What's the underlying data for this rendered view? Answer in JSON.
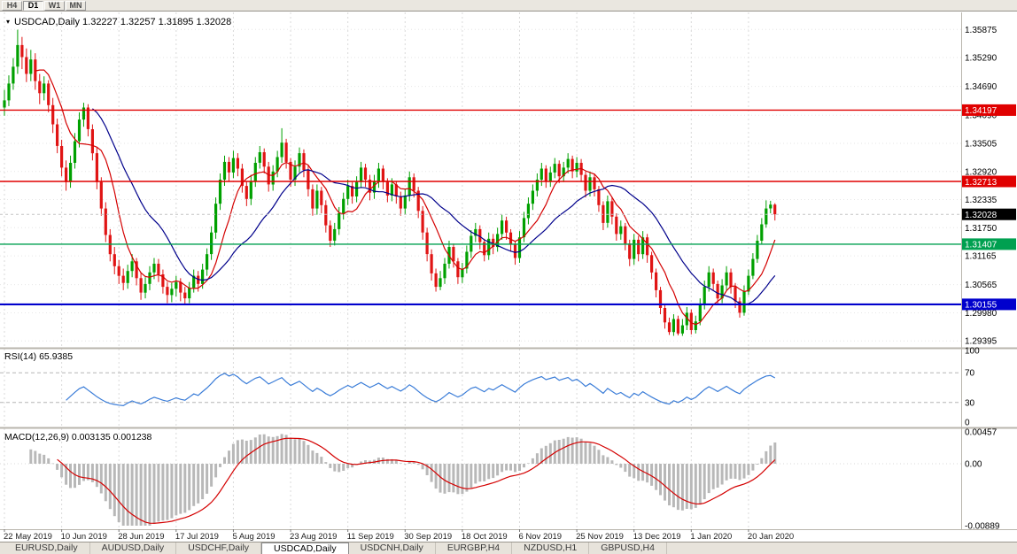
{
  "toolbar": {
    "buttons": [
      {
        "label": "H4",
        "active": false
      },
      {
        "label": "D1",
        "active": true
      },
      {
        "label": "W1",
        "active": false
      },
      {
        "label": "MN",
        "active": false
      }
    ]
  },
  "header": {
    "text": "USDCAD,Daily  1.32227 1.32257 1.31895 1.32028"
  },
  "rsi": {
    "label": "RSI(14) 65.9385",
    "period": 14,
    "value": "65.9385",
    "levels": [
      70,
      30
    ],
    "axis": [
      {
        "value": 100,
        "label": "100"
      },
      {
        "value": 70,
        "label": "70"
      },
      {
        "value": 30,
        "label": "30"
      },
      {
        "value": 0,
        "label": "0"
      }
    ],
    "color": "#3b7dd8",
    "range": [
      0,
      100
    ]
  },
  "macd": {
    "label": "MACD(12,26,9) 0.003135 0.001238",
    "fast": 12,
    "slow": 26,
    "signal": 9,
    "value": "0.003135",
    "signal_value": "0.001238",
    "axis": [
      {
        "value": 0.00457,
        "label": "0.00457"
      },
      {
        "value": 0,
        "label": "0.00"
      },
      {
        "value": -0.00889,
        "label": "-0.00889"
      }
    ],
    "range": [
      -0.00889,
      0.00457
    ],
    "hist_color": "#b8b8b8",
    "signal_color": "#d40000"
  },
  "tabs": [
    {
      "label": "EURUSD,Daily",
      "active": false
    },
    {
      "label": "AUDUSD,Daily",
      "active": false
    },
    {
      "label": "USDCHF,Daily",
      "active": false
    },
    {
      "label": "USDCAD,Daily",
      "active": true
    },
    {
      "label": "USDCNH,Daily",
      "active": false
    },
    {
      "label": "EURGBP,H4",
      "active": false
    },
    {
      "label": "NZDUSD,H1",
      "active": false
    },
    {
      "label": "GBPUSD,H4",
      "active": false
    }
  ],
  "chart_data": {
    "type": "candlestick",
    "symbol": "USDCAD",
    "timeframe": "Daily",
    "current_ohlc": {
      "open": "1.32227",
      "high": "1.32257",
      "low": "1.31895",
      "close": "1.32028"
    },
    "x_tick_labels": [
      "22 May 2019",
      "10 Jun 2019",
      "28 Jun 2019",
      "17 Jul 2019",
      "5 Aug 2019",
      "23 Aug 2019",
      "11 Sep 2019",
      "30 Sep 2019",
      "18 Oct 2019",
      "6 Nov 2019",
      "25 Nov 2019",
      "13 Dec 2019",
      "1 Jan 2020",
      "20 Jan 2020"
    ],
    "bars_per_x_tick": 13,
    "price_axis_ticks": [
      "1.35875",
      "1.35290",
      "1.34690",
      "1.34090",
      "1.33505",
      "1.32920",
      "1.32335",
      "1.31750",
      "1.31165",
      "1.30565",
      "1.29980",
      "1.29395"
    ],
    "price_range": [
      1.2927,
      1.3623
    ],
    "candle_colors": {
      "up": "#00a000",
      "down": "#e01414"
    },
    "moving_averages": [
      {
        "period": 8,
        "color": "#d40000"
      },
      {
        "period": 21,
        "color": "#00008b"
      }
    ],
    "horizontal_levels": [
      {
        "name": "resistance-line-upper",
        "price": 1.34197,
        "label": "1.34197",
        "color": "#e00000",
        "width": 1.4
      },
      {
        "name": "resistance-line-lower",
        "price": 1.32713,
        "label": "1.32713",
        "color": "#e00000",
        "width": 1.4
      },
      {
        "name": "support-line-green",
        "price": 1.31407,
        "label": "1.31407",
        "color": "#00a050",
        "width": 1.4
      },
      {
        "name": "support-line-blue",
        "price": 1.30155,
        "label": "1.30155",
        "color": "#0000cd",
        "width": 2.2
      }
    ],
    "current_price_badge": {
      "label": "1.32028",
      "price": 1.32028,
      "bg": "#000000"
    },
    "ohlc": [
      [
        1.3425,
        1.3462,
        1.3408,
        1.344
      ],
      [
        1.344,
        1.3492,
        1.3428,
        1.3475
      ],
      [
        1.3475,
        1.3528,
        1.3462,
        1.351
      ],
      [
        1.351,
        1.3587,
        1.3495,
        1.3555
      ],
      [
        1.3555,
        1.3572,
        1.3505,
        1.353
      ],
      [
        1.353,
        1.3548,
        1.3478,
        1.3495
      ],
      [
        1.3495,
        1.3545,
        1.348,
        1.3525
      ],
      [
        1.3525,
        1.3538,
        1.3462,
        1.348
      ],
      [
        1.348,
        1.3495,
        1.3432,
        1.3455
      ],
      [
        1.3455,
        1.349,
        1.344,
        1.3475
      ],
      [
        1.3475,
        1.3482,
        1.3415,
        1.343
      ],
      [
        1.343,
        1.3445,
        1.3372,
        1.339
      ],
      [
        1.339,
        1.3402,
        1.333,
        1.3345
      ],
      [
        1.3345,
        1.3358,
        1.3282,
        1.33
      ],
      [
        1.33,
        1.3315,
        1.3252,
        1.327
      ],
      [
        1.327,
        1.3325,
        1.3258,
        1.331
      ],
      [
        1.331,
        1.3372,
        1.3298,
        1.3355
      ],
      [
        1.3355,
        1.3415,
        1.3342,
        1.34
      ],
      [
        1.34,
        1.3435,
        1.3385,
        1.3425
      ],
      [
        1.3425,
        1.3432,
        1.3365,
        1.338
      ],
      [
        1.338,
        1.339,
        1.3315,
        1.333
      ],
      [
        1.333,
        1.3342,
        1.3255,
        1.327
      ],
      [
        1.327,
        1.328,
        1.32,
        1.3215
      ],
      [
        1.3215,
        1.3228,
        1.3145,
        1.316
      ],
      [
        1.316,
        1.3172,
        1.3105,
        1.312
      ],
      [
        1.312,
        1.3135,
        1.3078,
        1.3095
      ],
      [
        1.3095,
        1.3108,
        1.3058,
        1.3075
      ],
      [
        1.3075,
        1.309,
        1.3045,
        1.306
      ],
      [
        1.306,
        1.3098,
        1.3048,
        1.3085
      ],
      [
        1.3085,
        1.312,
        1.3072,
        1.3105
      ],
      [
        1.3105,
        1.3112,
        1.3055,
        1.307
      ],
      [
        1.307,
        1.3082,
        1.3025,
        1.304
      ],
      [
        1.304,
        1.3072,
        1.3028,
        1.3058
      ],
      [
        1.3058,
        1.3095,
        1.3045,
        1.3082
      ],
      [
        1.3082,
        1.3112,
        1.3068,
        1.31
      ],
      [
        1.31,
        1.311,
        1.3062,
        1.3078
      ],
      [
        1.3078,
        1.3088,
        1.3038,
        1.3052
      ],
      [
        1.3052,
        1.3062,
        1.3018,
        1.3035
      ],
      [
        1.3035,
        1.306,
        1.302,
        1.3048
      ],
      [
        1.3048,
        1.3075,
        1.3032,
        1.3062
      ],
      [
        1.3062,
        1.307,
        1.3022,
        1.304
      ],
      [
        1.304,
        1.3052,
        1.3016,
        1.3028
      ],
      [
        1.3028,
        1.3062,
        1.3018,
        1.305
      ],
      [
        1.305,
        1.3088,
        1.304,
        1.3075
      ],
      [
        1.3075,
        1.3085,
        1.3042,
        1.3058
      ],
      [
        1.3058,
        1.31,
        1.3048,
        1.3088
      ],
      [
        1.3088,
        1.3132,
        1.3075,
        1.312
      ],
      [
        1.312,
        1.3178,
        1.3108,
        1.3165
      ],
      [
        1.3165,
        1.3238,
        1.3152,
        1.3225
      ],
      [
        1.3225,
        1.3288,
        1.3212,
        1.3275
      ],
      [
        1.3275,
        1.3325,
        1.3262,
        1.3312
      ],
      [
        1.3312,
        1.3322,
        1.3272,
        1.329
      ],
      [
        1.329,
        1.3335,
        1.3278,
        1.332
      ],
      [
        1.332,
        1.333,
        1.3282,
        1.3298
      ],
      [
        1.3298,
        1.3308,
        1.3248,
        1.3262
      ],
      [
        1.3262,
        1.3272,
        1.322,
        1.3235
      ],
      [
        1.3235,
        1.3285,
        1.3222,
        1.3272
      ],
      [
        1.3272,
        1.3322,
        1.326,
        1.331
      ],
      [
        1.331,
        1.3345,
        1.3298,
        1.3332
      ],
      [
        1.3332,
        1.334,
        1.3288,
        1.3302
      ],
      [
        1.3302,
        1.3312,
        1.325,
        1.3265
      ],
      [
        1.3265,
        1.3305,
        1.3252,
        1.3292
      ],
      [
        1.3292,
        1.3335,
        1.328,
        1.3322
      ],
      [
        1.3322,
        1.3382,
        1.331,
        1.3352
      ],
      [
        1.3352,
        1.336,
        1.3298,
        1.3312
      ],
      [
        1.3312,
        1.332,
        1.326,
        1.3275
      ],
      [
        1.3275,
        1.3315,
        1.3262,
        1.3302
      ],
      [
        1.3302,
        1.3342,
        1.329,
        1.333
      ],
      [
        1.333,
        1.3338,
        1.328,
        1.3295
      ],
      [
        1.3295,
        1.3305,
        1.324,
        1.3255
      ],
      [
        1.3255,
        1.3265,
        1.32,
        1.3215
      ],
      [
        1.3215,
        1.3265,
        1.3202,
        1.3252
      ],
      [
        1.3252,
        1.326,
        1.3205,
        1.3222
      ],
      [
        1.3222,
        1.3232,
        1.3165,
        1.318
      ],
      [
        1.318,
        1.319,
        1.3135,
        1.3148
      ],
      [
        1.3148,
        1.3185,
        1.3138,
        1.3172
      ],
      [
        1.3172,
        1.3218,
        1.316,
        1.3205
      ],
      [
        1.3205,
        1.3248,
        1.3192,
        1.3235
      ],
      [
        1.3235,
        1.3275,
        1.3222,
        1.3262
      ],
      [
        1.3262,
        1.327,
        1.3225,
        1.324
      ],
      [
        1.324,
        1.3282,
        1.3228,
        1.327
      ],
      [
        1.327,
        1.3312,
        1.3258,
        1.33
      ],
      [
        1.33,
        1.3308,
        1.326,
        1.3275
      ],
      [
        1.3275,
        1.3285,
        1.3232,
        1.3248
      ],
      [
        1.3248,
        1.3285,
        1.3235,
        1.3272
      ],
      [
        1.3272,
        1.331,
        1.3258,
        1.3298
      ],
      [
        1.3298,
        1.3305,
        1.3255,
        1.327
      ],
      [
        1.327,
        1.3278,
        1.3228,
        1.3242
      ],
      [
        1.3242,
        1.3278,
        1.323,
        1.3265
      ],
      [
        1.3265,
        1.3272,
        1.3225,
        1.324
      ],
      [
        1.324,
        1.325,
        1.32,
        1.3215
      ],
      [
        1.3215,
        1.3255,
        1.3202,
        1.3242
      ],
      [
        1.3242,
        1.3292,
        1.323,
        1.328
      ],
      [
        1.328,
        1.3288,
        1.3238,
        1.3252
      ],
      [
        1.3252,
        1.326,
        1.3195,
        1.321
      ],
      [
        1.321,
        1.322,
        1.315,
        1.3165
      ],
      [
        1.3165,
        1.3175,
        1.3105,
        1.312
      ],
      [
        1.312,
        1.313,
        1.3065,
        1.308
      ],
      [
        1.308,
        1.309,
        1.3042,
        1.3052
      ],
      [
        1.3052,
        1.3085,
        1.3045,
        1.307
      ],
      [
        1.307,
        1.3112,
        1.3058,
        1.31
      ],
      [
        1.31,
        1.3148,
        1.309,
        1.3135
      ],
      [
        1.3135,
        1.3142,
        1.3092,
        1.3105
      ],
      [
        1.3105,
        1.3112,
        1.3058,
        1.3072
      ],
      [
        1.3072,
        1.3102,
        1.306,
        1.309
      ],
      [
        1.309,
        1.3138,
        1.308,
        1.3125
      ],
      [
        1.3125,
        1.317,
        1.3112,
        1.3158
      ],
      [
        1.3158,
        1.3185,
        1.3145,
        1.3172
      ],
      [
        1.3172,
        1.318,
        1.313,
        1.3145
      ],
      [
        1.3145,
        1.3152,
        1.3105,
        1.3118
      ],
      [
        1.3118,
        1.3165,
        1.3108,
        1.3152
      ],
      [
        1.3152,
        1.3162,
        1.312,
        1.3135
      ],
      [
        1.3135,
        1.3175,
        1.3125,
        1.3162
      ],
      [
        1.3162,
        1.3202,
        1.315,
        1.319
      ],
      [
        1.319,
        1.3198,
        1.315,
        1.3165
      ],
      [
        1.3165,
        1.3172,
        1.3125,
        1.314
      ],
      [
        1.314,
        1.3148,
        1.3098,
        1.3112
      ],
      [
        1.3112,
        1.3168,
        1.3102,
        1.3155
      ],
      [
        1.3155,
        1.3208,
        1.3145,
        1.3195
      ],
      [
        1.3195,
        1.3238,
        1.3182,
        1.3225
      ],
      [
        1.3225,
        1.3265,
        1.3212,
        1.3252
      ],
      [
        1.3252,
        1.3288,
        1.324,
        1.3275
      ],
      [
        1.3275,
        1.331,
        1.3262,
        1.3298
      ],
      [
        1.3298,
        1.3305,
        1.3258,
        1.3272
      ],
      [
        1.3272,
        1.3302,
        1.326,
        1.329
      ],
      [
        1.329,
        1.332,
        1.3278,
        1.3308
      ],
      [
        1.3308,
        1.3315,
        1.3268,
        1.3282
      ],
      [
        1.3282,
        1.3312,
        1.327,
        1.33
      ],
      [
        1.33,
        1.333,
        1.3288,
        1.3318
      ],
      [
        1.3318,
        1.3325,
        1.3278,
        1.3292
      ],
      [
        1.3292,
        1.3322,
        1.328,
        1.331
      ],
      [
        1.331,
        1.3318,
        1.327,
        1.3285
      ],
      [
        1.3285,
        1.3292,
        1.3238,
        1.3252
      ],
      [
        1.3252,
        1.3292,
        1.324,
        1.328
      ],
      [
        1.328,
        1.3288,
        1.324,
        1.3255
      ],
      [
        1.3255,
        1.3262,
        1.3208,
        1.3222
      ],
      [
        1.3222,
        1.323,
        1.317,
        1.3185
      ],
      [
        1.3185,
        1.3242,
        1.3175,
        1.323
      ],
      [
        1.323,
        1.3238,
        1.3182,
        1.3198
      ],
      [
        1.3198,
        1.3205,
        1.3148,
        1.3162
      ],
      [
        1.3162,
        1.319,
        1.315,
        1.3178
      ],
      [
        1.3178,
        1.3185,
        1.3128,
        1.3142
      ],
      [
        1.3142,
        1.315,
        1.3095,
        1.311
      ],
      [
        1.311,
        1.3162,
        1.3098,
        1.315
      ],
      [
        1.315,
        1.3158,
        1.3105,
        1.312
      ],
      [
        1.312,
        1.3168,
        1.311,
        1.3155
      ],
      [
        1.3155,
        1.3162,
        1.3102,
        1.3118
      ],
      [
        1.3118,
        1.3125,
        1.3068,
        1.3082
      ],
      [
        1.3082,
        1.309,
        1.303,
        1.3045
      ],
      [
        1.3045,
        1.3052,
        1.2995,
        1.3008
      ],
      [
        1.3008,
        1.3015,
        1.2965,
        1.2978
      ],
      [
        1.2978,
        1.2988,
        1.2952,
        1.2958
      ],
      [
        1.2958,
        1.2995,
        1.295,
        1.2985
      ],
      [
        1.2985,
        1.2992,
        1.2951,
        1.2955
      ],
      [
        1.2955,
        1.2985,
        1.295,
        1.2972
      ],
      [
        1.2972,
        1.301,
        1.2962,
        1.2998
      ],
      [
        1.2998,
        1.3005,
        1.2953,
        1.2962
      ],
      [
        1.2962,
        1.2992,
        1.2955,
        1.298
      ],
      [
        1.298,
        1.3028,
        1.2972,
        1.3015
      ],
      [
        1.3015,
        1.3065,
        1.3005,
        1.3052
      ],
      [
        1.3052,
        1.3095,
        1.3042,
        1.3082
      ],
      [
        1.3082,
        1.309,
        1.3045,
        1.3058
      ],
      [
        1.3058,
        1.3065,
        1.3015,
        1.3028
      ],
      [
        1.3028,
        1.3068,
        1.3018,
        1.3055
      ],
      [
        1.3055,
        1.3095,
        1.3045,
        1.3082
      ],
      [
        1.3082,
        1.309,
        1.3038,
        1.3052
      ],
      [
        1.3052,
        1.306,
        1.3008,
        1.3022
      ],
      [
        1.3022,
        1.303,
        1.2988,
        1.2998
      ],
      [
        1.2998,
        1.3055,
        1.2992,
        1.3042
      ],
      [
        1.3042,
        1.3088,
        1.3035,
        1.3075
      ],
      [
        1.3075,
        1.3122,
        1.3068,
        1.311
      ],
      [
        1.311,
        1.316,
        1.3102,
        1.3148
      ],
      [
        1.3148,
        1.3195,
        1.314,
        1.3182
      ],
      [
        1.3182,
        1.3232,
        1.3175,
        1.3215
      ],
      [
        1.3215,
        1.3231,
        1.3205,
        1.3223
      ],
      [
        1.3223,
        1.3226,
        1.319,
        1.3203
      ]
    ]
  }
}
